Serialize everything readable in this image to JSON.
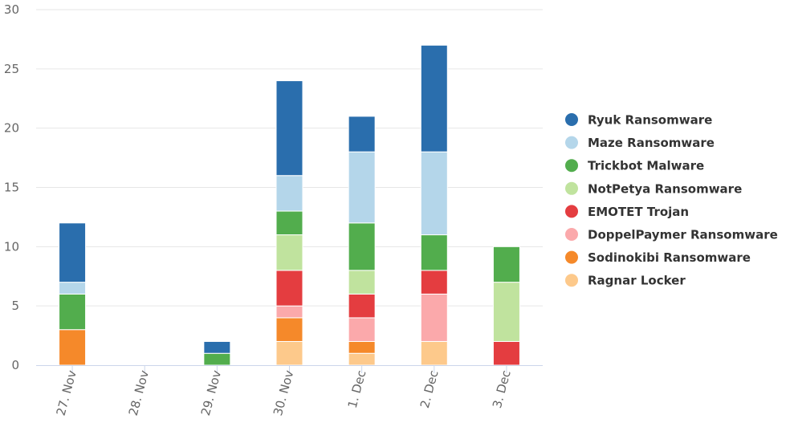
{
  "chart_data": {
    "type": "bar",
    "stacked": true,
    "categories": [
      "27. Nov",
      "28. Nov",
      "29. Nov",
      "30. Nov",
      "1. Dec",
      "2. Dec",
      "3. Dec"
    ],
    "series": [
      {
        "name": "Ragnar Locker",
        "color": "#fdc98b",
        "values": [
          0,
          0,
          0,
          2,
          1,
          2,
          0
        ]
      },
      {
        "name": "Sodinokibi Ransomware",
        "color": "#f5892a",
        "values": [
          3,
          0,
          0,
          2,
          1,
          0,
          0
        ]
      },
      {
        "name": "DoppelPaymer Ransomware",
        "color": "#fba9ab",
        "values": [
          0,
          0,
          0,
          1,
          2,
          4,
          0
        ]
      },
      {
        "name": "EMOTET Trojan",
        "color": "#e43d40",
        "values": [
          0,
          0,
          0,
          3,
          2,
          2,
          2
        ]
      },
      {
        "name": "NotPetya Ransomware",
        "color": "#c0e39e",
        "values": [
          0,
          0,
          0,
          3,
          2,
          0,
          5
        ]
      },
      {
        "name": "Trickbot Malware",
        "color": "#52ad4d",
        "values": [
          3,
          0,
          1,
          2,
          4,
          3,
          3
        ]
      },
      {
        "name": "Maze Ransomware",
        "color": "#b4d6ea",
        "values": [
          1,
          0,
          0,
          3,
          6,
          7,
          0
        ]
      },
      {
        "name": "Ryuk Ransomware",
        "color": "#2a6ead",
        "values": [
          5,
          0,
          1,
          8,
          3,
          9,
          0
        ]
      }
    ],
    "legend_order": [
      "Ryuk Ransomware",
      "Maze Ransomware",
      "Trickbot Malware",
      "NotPetya Ransomware",
      "EMOTET Trojan",
      "DoppelPaymer Ransomware",
      "Sodinokibi Ransomware",
      "Ragnar Locker"
    ],
    "yticks": [
      0,
      5,
      10,
      15,
      20,
      25,
      30
    ],
    "ylim": [
      0,
      30
    ],
    "title": "",
    "xlabel": "",
    "ylabel": "",
    "grid": true,
    "legend_position": "right"
  }
}
